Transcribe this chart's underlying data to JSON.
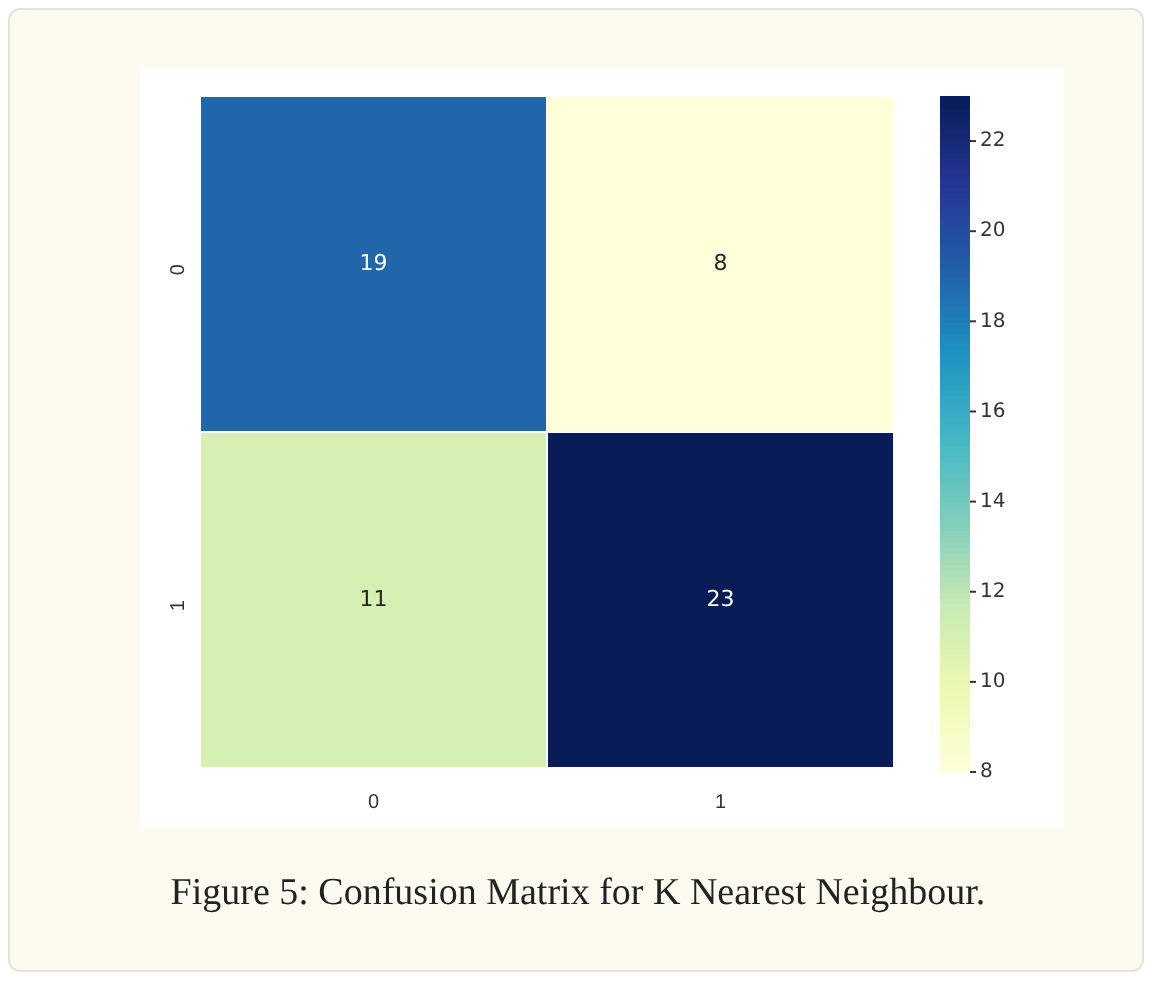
{
  "chart_data": {
    "type": "heatmap",
    "categories": [
      "0",
      "1"
    ],
    "y_categories": [
      "0",
      "1"
    ],
    "cells": [
      [
        19,
        8
      ],
      [
        11,
        23
      ]
    ],
    "data_labels": true,
    "clim": [
      8,
      23
    ],
    "cticks": [
      8,
      10,
      12,
      14,
      16,
      18,
      20,
      22
    ],
    "annotations": [
      "Figure 5: Confusion Matrix for K Nearest Neighbour."
    ]
  }
}
